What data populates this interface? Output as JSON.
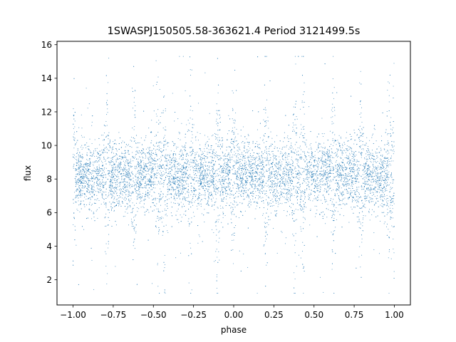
{
  "chart_data": {
    "type": "scatter",
    "title": "1SWASPJ150505.58-363621.4 Period 3121499.5s",
    "xlabel": "phase",
    "ylabel": "flux",
    "xlim": [
      -1.1,
      1.1
    ],
    "ylim": [
      0.5,
      16.2
    ],
    "x_ticks": [
      -1.0,
      -0.75,
      -0.5,
      -0.25,
      0.0,
      0.25,
      0.5,
      0.75,
      1.0
    ],
    "x_tick_labels": [
      "−1.00",
      "−0.75",
      "−0.50",
      "−0.25",
      "0.00",
      "0.25",
      "0.50",
      "0.75",
      "1.00"
    ],
    "y_ticks": [
      2,
      4,
      6,
      8,
      10,
      12,
      14,
      16
    ],
    "y_tick_labels": [
      "2",
      "4",
      "6",
      "8",
      "10",
      "12",
      "14",
      "16"
    ],
    "grid": false,
    "legend": "none",
    "marker_color": "#1f77b4",
    "series": [
      {
        "x_range": [
          -1.0,
          1.0
        ],
        "typical_flux": 8.2,
        "flux_min": 1.2,
        "flux_max": 15.3,
        "core_flux_range": [
          6.5,
          10.0
        ]
      }
    ]
  }
}
